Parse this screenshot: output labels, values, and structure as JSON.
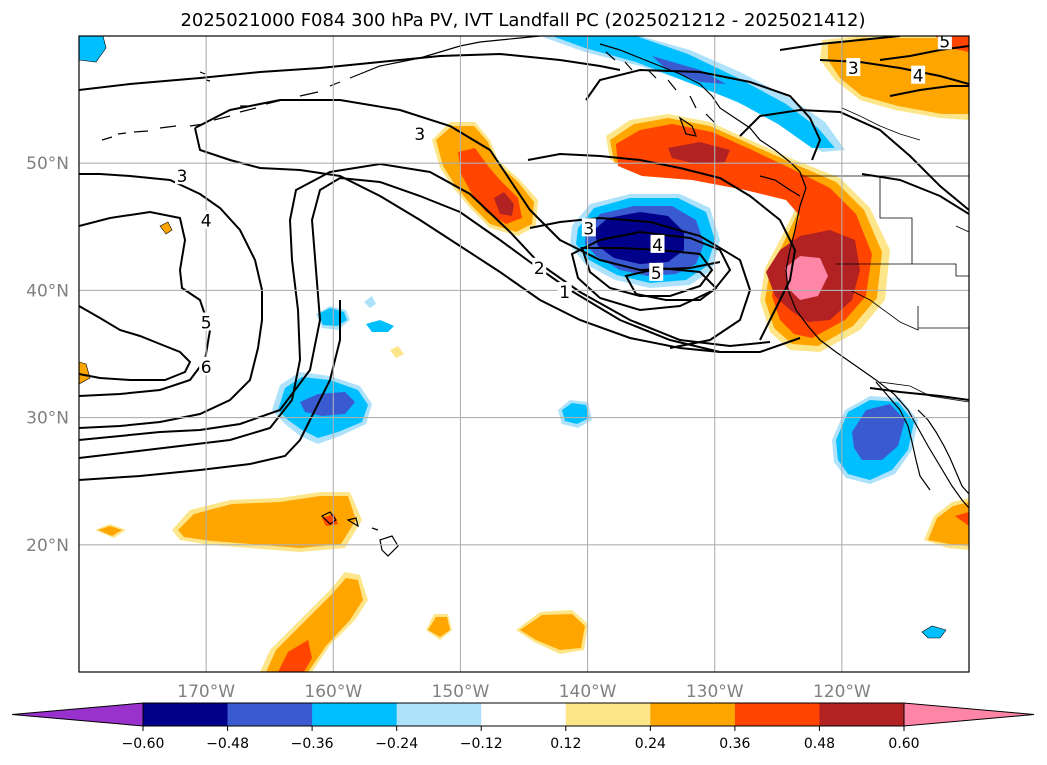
{
  "title": "2025021000 F084 300 hPa PV, IVT Landfall PC (2025021212 - 2025021412)",
  "map": {
    "lon_range": [
      -180,
      -110
    ],
    "lat_range": [
      10,
      60
    ],
    "lat_ticks": [
      {
        "lat": 50,
        "label": "50°N"
      },
      {
        "lat": 40,
        "label": "40°N"
      },
      {
        "lat": 30,
        "label": "30°N"
      },
      {
        "lat": 20,
        "label": "20°N"
      }
    ],
    "lon_ticks": [
      {
        "lon": -170,
        "label": "170°W"
      },
      {
        "lon": -160,
        "label": "160°W"
      },
      {
        "lon": -150,
        "label": "150°W"
      },
      {
        "lon": -140,
        "label": "140°W"
      },
      {
        "lon": -130,
        "label": "130°W"
      },
      {
        "lon": -120,
        "label": "120°W"
      }
    ],
    "contour_labels": [
      {
        "text": "3",
        "lon": -171.9,
        "lat": 48.9
      },
      {
        "text": "4",
        "lon": -170.0,
        "lat": 45.4
      },
      {
        "text": "5",
        "lon": -170.0,
        "lat": 37.4
      },
      {
        "text": "6",
        "lon": -170.0,
        "lat": 33.9
      },
      {
        "text": "3",
        "lon": -153.2,
        "lat": 52.2
      },
      {
        "text": "2",
        "lon": -143.8,
        "lat": 41.7
      },
      {
        "text": "1",
        "lon": -141.8,
        "lat": 39.8
      },
      {
        "text": "3",
        "lon": -139.9,
        "lat": 44.8
      },
      {
        "text": "4",
        "lon": -134.5,
        "lat": 43.5
      },
      {
        "text": "5",
        "lon": -134.6,
        "lat": 41.3
      },
      {
        "text": "5",
        "lon": -111.9,
        "lat": 59.5
      },
      {
        "text": "4",
        "lon": -114.0,
        "lat": 56.8
      },
      {
        "text": "3",
        "lon": -119.1,
        "lat": 57.4
      }
    ]
  },
  "colorbar": {
    "levels": [
      -0.6,
      -0.48,
      -0.36,
      -0.24,
      -0.12,
      0.12,
      0.24,
      0.36,
      0.48,
      0.6
    ],
    "tick_labels": [
      "−0.60",
      "−0.48",
      "−0.36",
      "−0.24",
      "−0.12",
      "0.12",
      "0.24",
      "0.36",
      "0.48",
      "0.60"
    ],
    "colors": [
      "#9932cc",
      "#00008b",
      "#3a5bd0",
      "#00bfff",
      "#aee2fb",
      "#ffffff",
      "#fde68a",
      "#ffa500",
      "#ff4500",
      "#b22222",
      "#ff85a7"
    ],
    "extend": "both"
  }
}
